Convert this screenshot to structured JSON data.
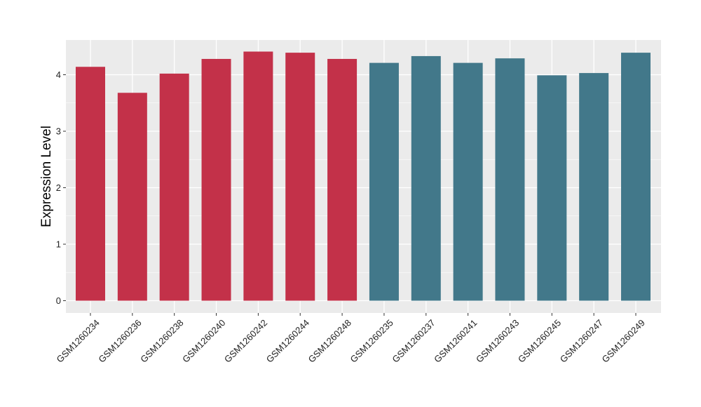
{
  "chart_data": {
    "type": "bar",
    "title": "",
    "xlabel": "",
    "ylabel": "Expression Level",
    "ylim": [
      0,
      4.55
    ],
    "y_ticks": [
      0,
      1,
      2,
      3,
      4
    ],
    "y_tick_labels": [
      "0",
      "1",
      "2",
      "3",
      "4"
    ],
    "grid": true,
    "legend": "none",
    "categories": [
      "GSM1260234",
      "GSM1260236",
      "GSM1260238",
      "GSM1260240",
      "GSM1260242",
      "GSM1260244",
      "GSM1260248",
      "GSM1260235",
      "GSM1260237",
      "GSM1260241",
      "GSM1260243",
      "GSM1260245",
      "GSM1260247",
      "GSM1260249"
    ],
    "values": [
      4.14,
      3.68,
      4.02,
      4.28,
      4.41,
      4.39,
      4.28,
      4.21,
      4.33,
      4.21,
      4.29,
      3.99,
      4.03,
      4.39
    ],
    "bar_colors": [
      "#c33149",
      "#c33149",
      "#c33149",
      "#c33149",
      "#c33149",
      "#c33149",
      "#c33149",
      "#42788a",
      "#42788a",
      "#42788a",
      "#42788a",
      "#42788a",
      "#42788a",
      "#42788a"
    ],
    "panel_background": "#ebebeb",
    "gridline_color": "#ffffff"
  }
}
